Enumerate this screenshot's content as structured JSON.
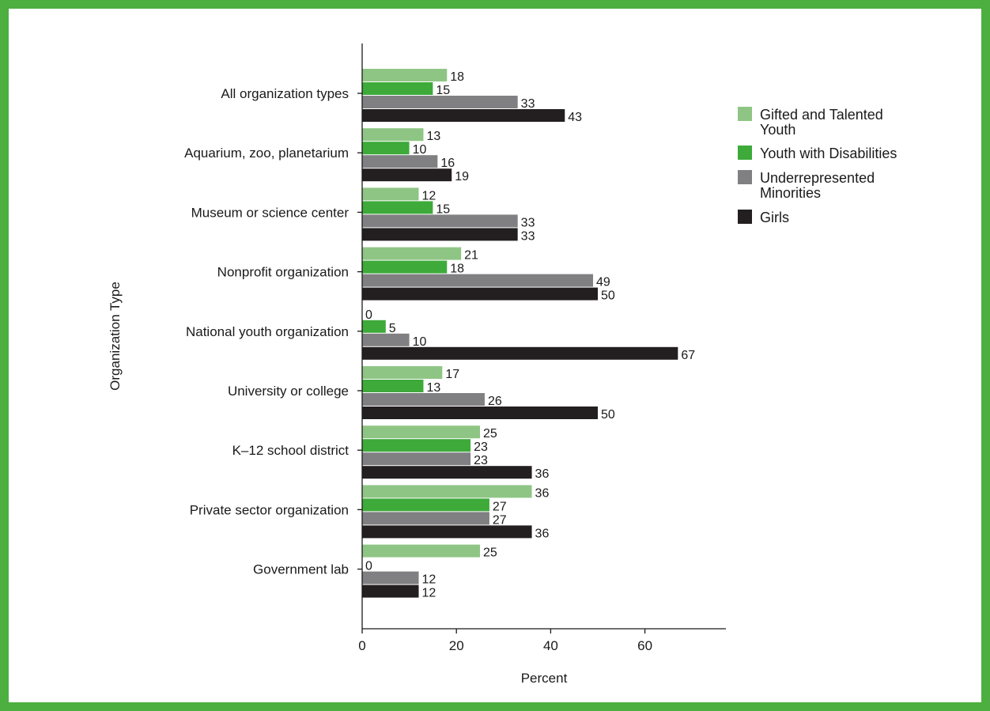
{
  "chart_data": {
    "type": "bar",
    "orientation": "horizontal",
    "title": "",
    "xlabel": "Percent",
    "ylabel": "Organization Type",
    "xlim": [
      0,
      77
    ],
    "xticks": [
      0,
      20,
      40,
      60
    ],
    "grid": false,
    "legend_position": "right",
    "categories": [
      "All organization types",
      "Aquarium, zoo, planetarium",
      "Museum or science center",
      "Nonprofit organization",
      "National youth organization",
      "University or college",
      "K–12 school district",
      "Private sector organization",
      "Government lab"
    ],
    "series": [
      {
        "name": "Gifted and Talented Youth",
        "color": "#8fc584",
        "values": [
          18,
          13,
          12,
          21,
          0,
          17,
          25,
          36,
          25
        ]
      },
      {
        "name": "Youth with Disabilities",
        "color": "#3daa3a",
        "values": [
          15,
          10,
          15,
          18,
          5,
          13,
          23,
          27,
          0
        ]
      },
      {
        "name": "Underrepresented Minorities",
        "color": "#808083",
        "values": [
          33,
          16,
          33,
          49,
          10,
          26,
          23,
          27,
          12
        ]
      },
      {
        "name": "Girls",
        "color": "#231f20",
        "values": [
          43,
          19,
          33,
          50,
          67,
          50,
          36,
          36,
          12
        ]
      }
    ]
  }
}
